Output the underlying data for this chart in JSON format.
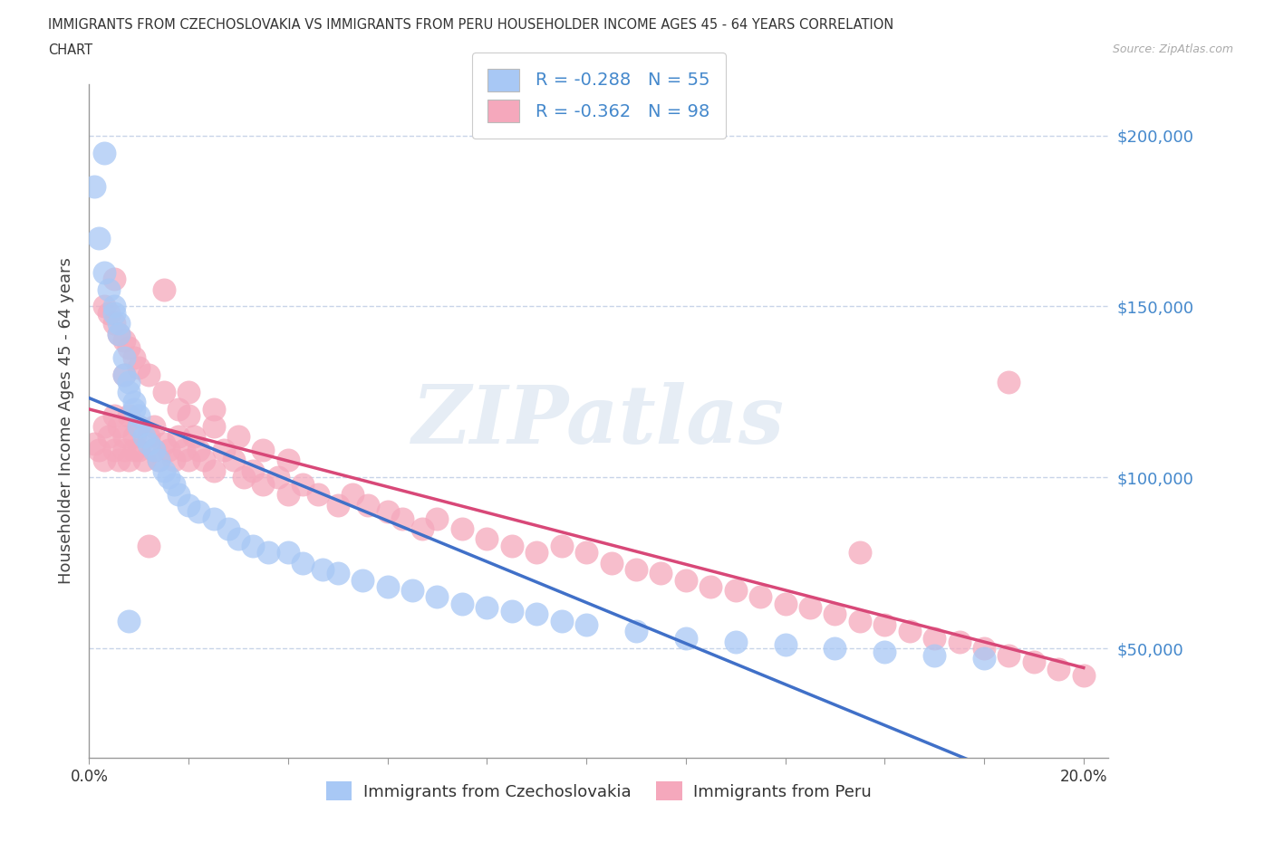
{
  "title_line1": "IMMIGRANTS FROM CZECHOSLOVAKIA VS IMMIGRANTS FROM PERU HOUSEHOLDER INCOME AGES 45 - 64 YEARS CORRELATION",
  "title_line2": "CHART",
  "source_text": "Source: ZipAtlas.com",
  "ylabel": "Householder Income Ages 45 - 64 years",
  "legend_r1": "R = -0.288   N = 55",
  "legend_r2": "R = -0.362   N = 98",
  "legend_label1": "Immigrants from Czechoslovakia",
  "legend_label2": "Immigrants from Peru",
  "color_czech": "#a8c8f5",
  "color_peru": "#f5a8bc",
  "color_czech_line": "#4070c8",
  "color_peru_line": "#d84878",
  "ytick_labels": [
    "$50,000",
    "$100,000",
    "$150,000",
    "$200,000"
  ],
  "ytick_values": [
    50000,
    100000,
    150000,
    200000
  ],
  "xlim": [
    0.0,
    0.205
  ],
  "ylim": [
    18000,
    215000
  ],
  "background_color": "#ffffff",
  "grid_color": "#c8d4e8",
  "watermark": "ZIPatlas",
  "czech_x": [
    0.001,
    0.002,
    0.003,
    0.004,
    0.005,
    0.005,
    0.006,
    0.006,
    0.007,
    0.007,
    0.008,
    0.008,
    0.009,
    0.009,
    0.01,
    0.01,
    0.011,
    0.012,
    0.013,
    0.014,
    0.015,
    0.016,
    0.017,
    0.018,
    0.02,
    0.022,
    0.025,
    0.028,
    0.03,
    0.033,
    0.036,
    0.04,
    0.043,
    0.047,
    0.05,
    0.055,
    0.06,
    0.065,
    0.07,
    0.075,
    0.08,
    0.085,
    0.09,
    0.095,
    0.1,
    0.11,
    0.12,
    0.13,
    0.14,
    0.15,
    0.16,
    0.17,
    0.18,
    0.003,
    0.008
  ],
  "czech_y": [
    185000,
    170000,
    160000,
    155000,
    150000,
    148000,
    145000,
    142000,
    135000,
    130000,
    128000,
    125000,
    122000,
    120000,
    118000,
    115000,
    112000,
    110000,
    108000,
    105000,
    102000,
    100000,
    98000,
    95000,
    92000,
    90000,
    88000,
    85000,
    82000,
    80000,
    78000,
    78000,
    75000,
    73000,
    72000,
    70000,
    68000,
    67000,
    65000,
    63000,
    62000,
    61000,
    60000,
    58000,
    57000,
    55000,
    53000,
    52000,
    51000,
    50000,
    49000,
    48000,
    47000,
    195000,
    58000
  ],
  "peru_x": [
    0.001,
    0.002,
    0.003,
    0.003,
    0.004,
    0.005,
    0.005,
    0.006,
    0.006,
    0.007,
    0.007,
    0.008,
    0.008,
    0.009,
    0.009,
    0.01,
    0.01,
    0.011,
    0.012,
    0.013,
    0.013,
    0.014,
    0.015,
    0.016,
    0.017,
    0.018,
    0.019,
    0.02,
    0.021,
    0.022,
    0.023,
    0.025,
    0.027,
    0.029,
    0.031,
    0.033,
    0.035,
    0.038,
    0.04,
    0.043,
    0.046,
    0.05,
    0.053,
    0.056,
    0.06,
    0.063,
    0.067,
    0.07,
    0.075,
    0.08,
    0.085,
    0.09,
    0.095,
    0.1,
    0.105,
    0.11,
    0.115,
    0.12,
    0.125,
    0.13,
    0.135,
    0.14,
    0.145,
    0.15,
    0.155,
    0.16,
    0.165,
    0.17,
    0.175,
    0.18,
    0.185,
    0.19,
    0.195,
    0.2,
    0.003,
    0.004,
    0.005,
    0.006,
    0.007,
    0.008,
    0.009,
    0.01,
    0.012,
    0.015,
    0.018,
    0.02,
    0.025,
    0.03,
    0.035,
    0.04,
    0.015,
    0.02,
    0.025,
    0.185,
    0.005,
    0.155,
    0.007,
    0.012
  ],
  "peru_y": [
    110000,
    108000,
    115000,
    105000,
    112000,
    118000,
    108000,
    115000,
    105000,
    112000,
    108000,
    118000,
    105000,
    112000,
    108000,
    115000,
    108000,
    105000,
    112000,
    108000,
    115000,
    105000,
    110000,
    108000,
    105000,
    112000,
    108000,
    105000,
    112000,
    108000,
    105000,
    102000,
    108000,
    105000,
    100000,
    102000,
    98000,
    100000,
    95000,
    98000,
    95000,
    92000,
    95000,
    92000,
    90000,
    88000,
    85000,
    88000,
    85000,
    82000,
    80000,
    78000,
    80000,
    78000,
    75000,
    73000,
    72000,
    70000,
    68000,
    67000,
    65000,
    63000,
    62000,
    60000,
    58000,
    57000,
    55000,
    53000,
    52000,
    50000,
    48000,
    46000,
    44000,
    42000,
    150000,
    148000,
    145000,
    142000,
    140000,
    138000,
    135000,
    132000,
    130000,
    125000,
    120000,
    118000,
    115000,
    112000,
    108000,
    105000,
    155000,
    125000,
    120000,
    128000,
    158000,
    78000,
    130000,
    80000
  ]
}
